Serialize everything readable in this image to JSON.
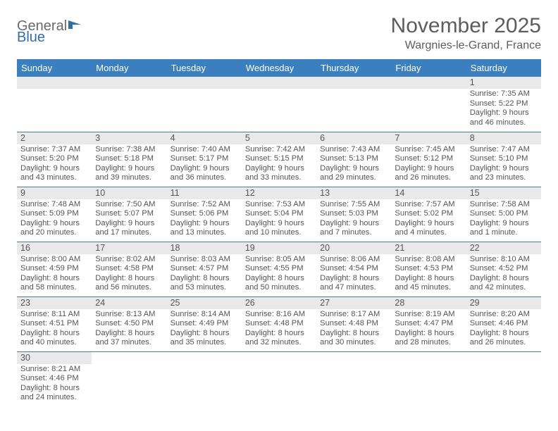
{
  "logo": {
    "part1": "General",
    "part2": "Blue"
  },
  "title": "November 2025",
  "location": "Wargnies-le-Grand, France",
  "colors": {
    "header_bg": "#3b7fbf",
    "header_text": "#ffffff",
    "band_bg": "#e9e9e9",
    "text": "#555555",
    "rule": "#3b7fbf"
  },
  "day_labels": [
    "Sunday",
    "Monday",
    "Tuesday",
    "Wednesday",
    "Thursday",
    "Friday",
    "Saturday"
  ],
  "weeks": [
    [
      null,
      null,
      null,
      null,
      null,
      null,
      {
        "n": "1",
        "sr": "Sunrise: 7:35 AM",
        "ss": "Sunset: 5:22 PM",
        "d1": "Daylight: 9 hours",
        "d2": "and 46 minutes."
      }
    ],
    [
      {
        "n": "2",
        "sr": "Sunrise: 7:37 AM",
        "ss": "Sunset: 5:20 PM",
        "d1": "Daylight: 9 hours",
        "d2": "and 43 minutes."
      },
      {
        "n": "3",
        "sr": "Sunrise: 7:38 AM",
        "ss": "Sunset: 5:18 PM",
        "d1": "Daylight: 9 hours",
        "d2": "and 39 minutes."
      },
      {
        "n": "4",
        "sr": "Sunrise: 7:40 AM",
        "ss": "Sunset: 5:17 PM",
        "d1": "Daylight: 9 hours",
        "d2": "and 36 minutes."
      },
      {
        "n": "5",
        "sr": "Sunrise: 7:42 AM",
        "ss": "Sunset: 5:15 PM",
        "d1": "Daylight: 9 hours",
        "d2": "and 33 minutes."
      },
      {
        "n": "6",
        "sr": "Sunrise: 7:43 AM",
        "ss": "Sunset: 5:13 PM",
        "d1": "Daylight: 9 hours",
        "d2": "and 29 minutes."
      },
      {
        "n": "7",
        "sr": "Sunrise: 7:45 AM",
        "ss": "Sunset: 5:12 PM",
        "d1": "Daylight: 9 hours",
        "d2": "and 26 minutes."
      },
      {
        "n": "8",
        "sr": "Sunrise: 7:47 AM",
        "ss": "Sunset: 5:10 PM",
        "d1": "Daylight: 9 hours",
        "d2": "and 23 minutes."
      }
    ],
    [
      {
        "n": "9",
        "sr": "Sunrise: 7:48 AM",
        "ss": "Sunset: 5:09 PM",
        "d1": "Daylight: 9 hours",
        "d2": "and 20 minutes."
      },
      {
        "n": "10",
        "sr": "Sunrise: 7:50 AM",
        "ss": "Sunset: 5:07 PM",
        "d1": "Daylight: 9 hours",
        "d2": "and 17 minutes."
      },
      {
        "n": "11",
        "sr": "Sunrise: 7:52 AM",
        "ss": "Sunset: 5:06 PM",
        "d1": "Daylight: 9 hours",
        "d2": "and 13 minutes."
      },
      {
        "n": "12",
        "sr": "Sunrise: 7:53 AM",
        "ss": "Sunset: 5:04 PM",
        "d1": "Daylight: 9 hours",
        "d2": "and 10 minutes."
      },
      {
        "n": "13",
        "sr": "Sunrise: 7:55 AM",
        "ss": "Sunset: 5:03 PM",
        "d1": "Daylight: 9 hours",
        "d2": "and 7 minutes."
      },
      {
        "n": "14",
        "sr": "Sunrise: 7:57 AM",
        "ss": "Sunset: 5:02 PM",
        "d1": "Daylight: 9 hours",
        "d2": "and 4 minutes."
      },
      {
        "n": "15",
        "sr": "Sunrise: 7:58 AM",
        "ss": "Sunset: 5:00 PM",
        "d1": "Daylight: 9 hours",
        "d2": "and 1 minute."
      }
    ],
    [
      {
        "n": "16",
        "sr": "Sunrise: 8:00 AM",
        "ss": "Sunset: 4:59 PM",
        "d1": "Daylight: 8 hours",
        "d2": "and 58 minutes."
      },
      {
        "n": "17",
        "sr": "Sunrise: 8:02 AM",
        "ss": "Sunset: 4:58 PM",
        "d1": "Daylight: 8 hours",
        "d2": "and 56 minutes."
      },
      {
        "n": "18",
        "sr": "Sunrise: 8:03 AM",
        "ss": "Sunset: 4:57 PM",
        "d1": "Daylight: 8 hours",
        "d2": "and 53 minutes."
      },
      {
        "n": "19",
        "sr": "Sunrise: 8:05 AM",
        "ss": "Sunset: 4:55 PM",
        "d1": "Daylight: 8 hours",
        "d2": "and 50 minutes."
      },
      {
        "n": "20",
        "sr": "Sunrise: 8:06 AM",
        "ss": "Sunset: 4:54 PM",
        "d1": "Daylight: 8 hours",
        "d2": "and 47 minutes."
      },
      {
        "n": "21",
        "sr": "Sunrise: 8:08 AM",
        "ss": "Sunset: 4:53 PM",
        "d1": "Daylight: 8 hours",
        "d2": "and 45 minutes."
      },
      {
        "n": "22",
        "sr": "Sunrise: 8:10 AM",
        "ss": "Sunset: 4:52 PM",
        "d1": "Daylight: 8 hours",
        "d2": "and 42 minutes."
      }
    ],
    [
      {
        "n": "23",
        "sr": "Sunrise: 8:11 AM",
        "ss": "Sunset: 4:51 PM",
        "d1": "Daylight: 8 hours",
        "d2": "and 40 minutes."
      },
      {
        "n": "24",
        "sr": "Sunrise: 8:13 AM",
        "ss": "Sunset: 4:50 PM",
        "d1": "Daylight: 8 hours",
        "d2": "and 37 minutes."
      },
      {
        "n": "25",
        "sr": "Sunrise: 8:14 AM",
        "ss": "Sunset: 4:49 PM",
        "d1": "Daylight: 8 hours",
        "d2": "and 35 minutes."
      },
      {
        "n": "26",
        "sr": "Sunrise: 8:16 AM",
        "ss": "Sunset: 4:48 PM",
        "d1": "Daylight: 8 hours",
        "d2": "and 32 minutes."
      },
      {
        "n": "27",
        "sr": "Sunrise: 8:17 AM",
        "ss": "Sunset: 4:48 PM",
        "d1": "Daylight: 8 hours",
        "d2": "and 30 minutes."
      },
      {
        "n": "28",
        "sr": "Sunrise: 8:19 AM",
        "ss": "Sunset: 4:47 PM",
        "d1": "Daylight: 8 hours",
        "d2": "and 28 minutes."
      },
      {
        "n": "29",
        "sr": "Sunrise: 8:20 AM",
        "ss": "Sunset: 4:46 PM",
        "d1": "Daylight: 8 hours",
        "d2": "and 26 minutes."
      }
    ],
    [
      {
        "n": "30",
        "sr": "Sunrise: 8:21 AM",
        "ss": "Sunset: 4:46 PM",
        "d1": "Daylight: 8 hours",
        "d2": "and 24 minutes."
      },
      null,
      null,
      null,
      null,
      null,
      null
    ]
  ]
}
